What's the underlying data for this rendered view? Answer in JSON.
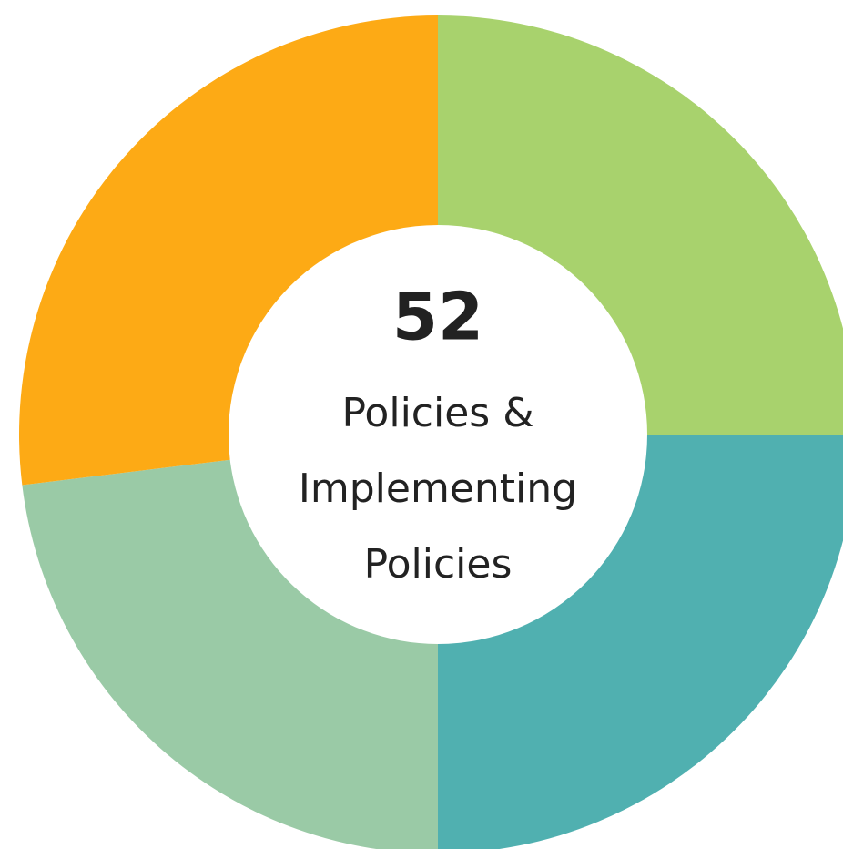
{
  "chart_data": {
    "type": "donut",
    "center_value": 52,
    "center_label": [
      "Policies &",
      "Implementing",
      "Policies"
    ],
    "values": [
      13,
      13,
      12,
      14
    ],
    "colors": [
      "#a8d26d",
      "#50b0b0",
      "#9acaa6",
      "#fdaa15"
    ]
  }
}
